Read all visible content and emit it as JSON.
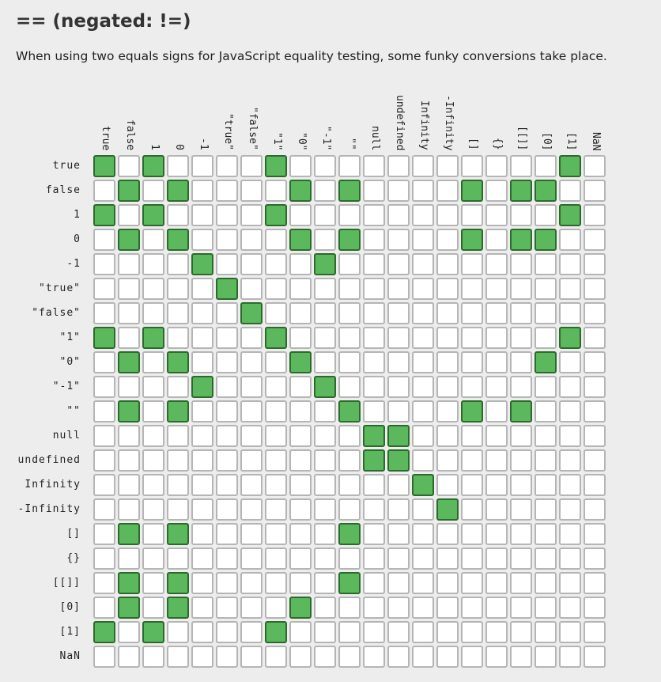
{
  "header": {
    "title": "== (negated: !=)",
    "description": "When using two equals signs for JavaScript equality testing, some funky conversions take place."
  },
  "colors": {
    "equal": "#5cb85c",
    "equal_border": "#2d6a2d",
    "not_equal": "#ffffff",
    "grid_border": "#b5b5b5",
    "background": "#ededed"
  },
  "matrix": {
    "columns": [
      "true",
      "false",
      "1",
      "0",
      "-1",
      "\"true\"",
      "\"false\"",
      "\"1\"",
      "\"0\"",
      "\"-1\"",
      "\"\"",
      "null",
      "undefined",
      "Infinity",
      "-Infinity",
      "[]",
      "{}",
      "[[]]",
      "[0]",
      "[1]",
      "NaN"
    ],
    "rows": [
      "true",
      "false",
      "1",
      "0",
      "-1",
      "\"true\"",
      "\"false\"",
      "\"1\"",
      "\"0\"",
      "\"-1\"",
      "\"\"",
      "null",
      "undefined",
      "Infinity",
      "-Infinity",
      "[]",
      "{}",
      "[[]]",
      "[0]",
      "[1]",
      "NaN"
    ],
    "cells": [
      [
        1,
        0,
        1,
        0,
        0,
        0,
        0,
        1,
        0,
        0,
        0,
        0,
        0,
        0,
        0,
        0,
        0,
        0,
        0,
        1,
        0
      ],
      [
        0,
        1,
        0,
        1,
        0,
        0,
        0,
        0,
        1,
        0,
        1,
        0,
        0,
        0,
        0,
        1,
        0,
        1,
        1,
        0,
        0
      ],
      [
        1,
        0,
        1,
        0,
        0,
        0,
        0,
        1,
        0,
        0,
        0,
        0,
        0,
        0,
        0,
        0,
        0,
        0,
        0,
        1,
        0
      ],
      [
        0,
        1,
        0,
        1,
        0,
        0,
        0,
        0,
        1,
        0,
        1,
        0,
        0,
        0,
        0,
        1,
        0,
        1,
        1,
        0,
        0
      ],
      [
        0,
        0,
        0,
        0,
        1,
        0,
        0,
        0,
        0,
        1,
        0,
        0,
        0,
        0,
        0,
        0,
        0,
        0,
        0,
        0,
        0
      ],
      [
        0,
        0,
        0,
        0,
        0,
        1,
        0,
        0,
        0,
        0,
        0,
        0,
        0,
        0,
        0,
        0,
        0,
        0,
        0,
        0,
        0
      ],
      [
        0,
        0,
        0,
        0,
        0,
        0,
        1,
        0,
        0,
        0,
        0,
        0,
        0,
        0,
        0,
        0,
        0,
        0,
        0,
        0,
        0
      ],
      [
        1,
        0,
        1,
        0,
        0,
        0,
        0,
        1,
        0,
        0,
        0,
        0,
        0,
        0,
        0,
        0,
        0,
        0,
        0,
        1,
        0
      ],
      [
        0,
        1,
        0,
        1,
        0,
        0,
        0,
        0,
        1,
        0,
        0,
        0,
        0,
        0,
        0,
        0,
        0,
        0,
        1,
        0,
        0
      ],
      [
        0,
        0,
        0,
        0,
        1,
        0,
        0,
        0,
        0,
        1,
        0,
        0,
        0,
        0,
        0,
        0,
        0,
        0,
        0,
        0,
        0
      ],
      [
        0,
        1,
        0,
        1,
        0,
        0,
        0,
        0,
        0,
        0,
        1,
        0,
        0,
        0,
        0,
        1,
        0,
        1,
        0,
        0,
        0
      ],
      [
        0,
        0,
        0,
        0,
        0,
        0,
        0,
        0,
        0,
        0,
        0,
        1,
        1,
        0,
        0,
        0,
        0,
        0,
        0,
        0,
        0
      ],
      [
        0,
        0,
        0,
        0,
        0,
        0,
        0,
        0,
        0,
        0,
        0,
        1,
        1,
        0,
        0,
        0,
        0,
        0,
        0,
        0,
        0
      ],
      [
        0,
        0,
        0,
        0,
        0,
        0,
        0,
        0,
        0,
        0,
        0,
        0,
        0,
        1,
        0,
        0,
        0,
        0,
        0,
        0,
        0
      ],
      [
        0,
        0,
        0,
        0,
        0,
        0,
        0,
        0,
        0,
        0,
        0,
        0,
        0,
        0,
        1,
        0,
        0,
        0,
        0,
        0,
        0
      ],
      [
        0,
        1,
        0,
        1,
        0,
        0,
        0,
        0,
        0,
        0,
        1,
        0,
        0,
        0,
        0,
        0,
        0,
        0,
        0,
        0,
        0
      ],
      [
        0,
        0,
        0,
        0,
        0,
        0,
        0,
        0,
        0,
        0,
        0,
        0,
        0,
        0,
        0,
        0,
        0,
        0,
        0,
        0,
        0
      ],
      [
        0,
        1,
        0,
        1,
        0,
        0,
        0,
        0,
        0,
        0,
        1,
        0,
        0,
        0,
        0,
        0,
        0,
        0,
        0,
        0,
        0
      ],
      [
        0,
        1,
        0,
        1,
        0,
        0,
        0,
        0,
        1,
        0,
        0,
        0,
        0,
        0,
        0,
        0,
        0,
        0,
        0,
        0,
        0
      ],
      [
        1,
        0,
        1,
        0,
        0,
        0,
        0,
        1,
        0,
        0,
        0,
        0,
        0,
        0,
        0,
        0,
        0,
        0,
        0,
        0,
        0
      ],
      [
        0,
        0,
        0,
        0,
        0,
        0,
        0,
        0,
        0,
        0,
        0,
        0,
        0,
        0,
        0,
        0,
        0,
        0,
        0,
        0,
        0
      ]
    ]
  }
}
